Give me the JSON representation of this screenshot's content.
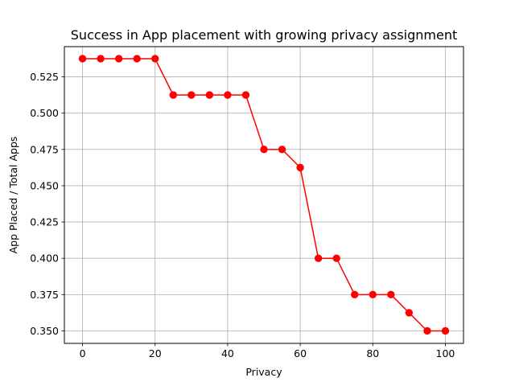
{
  "chart_data": {
    "type": "line",
    "title": "Success in App placement with growing privacy assignment",
    "xlabel": "Privacy",
    "ylabel": "App Placed / Total Apps",
    "xlim": [
      -5,
      105
    ],
    "ylim": [
      0.3414,
      0.5458
    ],
    "grid": true,
    "x_ticks": [
      0,
      20,
      40,
      60,
      80,
      100
    ],
    "y_ticks": [
      0.35,
      0.375,
      0.4,
      0.425,
      0.45,
      0.475,
      0.5,
      0.525
    ],
    "x_tick_labels": [
      "0",
      "20",
      "40",
      "60",
      "80",
      "100"
    ],
    "y_tick_labels": [
      "0.350",
      "0.375",
      "0.400",
      "0.425",
      "0.450",
      "0.475",
      "0.500",
      "0.525"
    ],
    "series": [
      {
        "color": "#ff0000",
        "marker": "circle",
        "x": [
          0,
          5,
          10,
          15,
          20,
          25,
          30,
          35,
          40,
          45,
          50,
          55,
          60,
          65,
          70,
          75,
          80,
          85,
          90,
          95,
          100
        ],
        "y": [
          0.5375,
          0.5375,
          0.5375,
          0.5375,
          0.5375,
          0.5125,
          0.5125,
          0.5125,
          0.5125,
          0.5125,
          0.475,
          0.475,
          0.4625,
          0.4,
          0.4,
          0.375,
          0.375,
          0.375,
          0.3625,
          0.35,
          0.35
        ]
      }
    ]
  }
}
